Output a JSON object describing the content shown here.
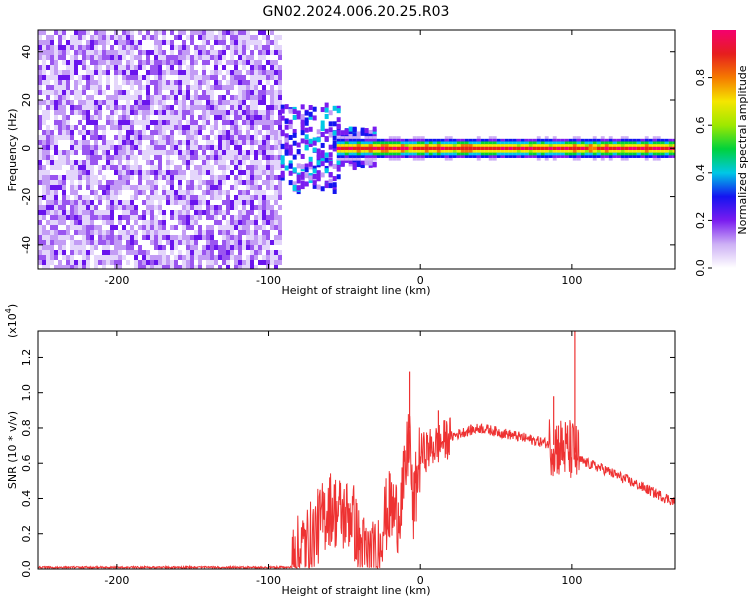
{
  "title": "GN02.2024.006.20.25.R03",
  "chart_data": [
    {
      "type": "heatmap",
      "title": "GN02.2024.006.20.25.R03",
      "xlabel": "Height of straight line (km)",
      "ylabel": "Frequency (Hz)",
      "xlim": [
        -252,
        168
      ],
      "ylim": [
        -50,
        49
      ],
      "x_ticks": [
        -200,
        -100,
        0,
        100
      ],
      "y_ticks": [
        -40,
        -20,
        0,
        20,
        40
      ],
      "grid": false,
      "noise_region_x": [
        -252,
        -92
      ],
      "signal_line_frequency": 0,
      "colorbar": {
        "label": "Normalized spectral amplitude",
        "range": [
          0,
          1
        ],
        "ticks": [
          0.0,
          0.2,
          0.4,
          0.6,
          0.8
        ],
        "colormap": [
          "#ffffff",
          "#cdb0f5",
          "#7a1cf0",
          "#1414f0",
          "#00c8e6",
          "#00d23c",
          "#9ee800",
          "#f5e600",
          "#f57a00",
          "#e61e1e",
          "#f5006e"
        ]
      }
    },
    {
      "type": "line",
      "xlabel": "Height of straight line (km)",
      "ylabel": "SNR (10 * v/v)",
      "yscale_label": "(x10",
      "yscale_exponent": "4",
      "xlim": [
        -252,
        168
      ],
      "ylim": [
        0,
        1.35
      ],
      "x_ticks": [
        -200,
        -100,
        0,
        100
      ],
      "y_ticks": [
        0.0,
        0.2,
        0.4,
        0.6,
        0.8,
        1.0,
        1.2
      ],
      "grid": false,
      "color": "#ee3232",
      "x": [
        -252,
        -200,
        -150,
        -100,
        -85,
        -80,
        -70,
        -60,
        -50,
        -45,
        -40,
        -35,
        -30,
        -25,
        -20,
        -15,
        -10,
        -7,
        -5,
        -2,
        0,
        10,
        20,
        30,
        40,
        50,
        60,
        70,
        80,
        90,
        95,
        100,
        102,
        105,
        110,
        120,
        130,
        140,
        150,
        160,
        168
      ],
      "values": [
        0.0,
        0.0,
        0.0,
        0.0,
        0.01,
        0.1,
        0.2,
        0.35,
        0.3,
        0.32,
        0.12,
        0.08,
        0.05,
        0.25,
        0.35,
        0.3,
        0.5,
        0.8,
        0.3,
        0.52,
        0.65,
        0.7,
        0.75,
        0.78,
        0.8,
        0.78,
        0.76,
        0.74,
        0.72,
        0.7,
        0.68,
        0.67,
        0.66,
        0.62,
        0.6,
        0.57,
        0.53,
        0.49,
        0.45,
        0.41,
        0.38
      ],
      "spikes": [
        {
          "x": -7,
          "y": 1.12
        },
        {
          "x": 12,
          "y": 0.9
        },
        {
          "x": 88,
          "y": 0.98
        },
        {
          "x": 102,
          "y": 1.35
        }
      ]
    }
  ]
}
